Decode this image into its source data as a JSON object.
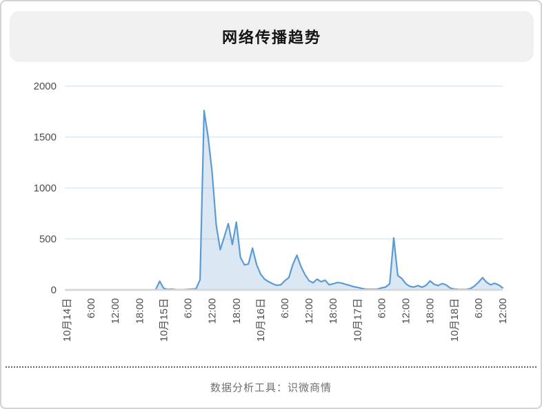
{
  "header": {
    "title": "网络传播趋势"
  },
  "footer": {
    "text": "数据分析工具：识微商情"
  },
  "chart_data": {
    "type": "area",
    "title": "网络传播趋势",
    "x_unit": "hour",
    "tick_every": 6,
    "tick_labels": [
      "10月14日",
      "6:00",
      "12:00",
      "18:00",
      "10月15日",
      "6:00",
      "12:00",
      "18:00",
      "10月16日",
      "6:00",
      "12:00",
      "18:00",
      "10月17日",
      "6:00",
      "12:00",
      "18:00",
      "10月18日",
      "6:00",
      "12:00"
    ],
    "values": [
      0,
      0,
      0,
      0,
      0,
      0,
      0,
      0,
      0,
      0,
      0,
      0,
      0,
      0,
      0,
      0,
      0,
      0,
      0,
      0,
      0,
      0,
      3,
      85,
      15,
      5,
      8,
      3,
      2,
      3,
      5,
      8,
      10,
      100,
      1760,
      1500,
      1150,
      640,
      395,
      520,
      650,
      445,
      665,
      320,
      245,
      255,
      410,
      250,
      155,
      105,
      80,
      60,
      45,
      50,
      90,
      120,
      250,
      340,
      230,
      150,
      90,
      70,
      105,
      80,
      95,
      50,
      60,
      72,
      68,
      55,
      45,
      32,
      25,
      15,
      8,
      6,
      6,
      8,
      20,
      28,
      60,
      510,
      140,
      112,
      60,
      34,
      28,
      42,
      26,
      45,
      88,
      55,
      42,
      62,
      48,
      18,
      8,
      5,
      4,
      5,
      12,
      38,
      75,
      120,
      75,
      50,
      65,
      48,
      20
    ],
    "ylim": [
      0,
      2000
    ],
    "y_ticks": [
      0,
      500,
      1000,
      1500,
      2000
    ],
    "grid": true,
    "legend": "none",
    "colors": {
      "line": "#5b9ad2",
      "fill": "rgba(127,171,217,0.28)",
      "gridline": "#dce9f4",
      "axis_line": "#d3d6d9",
      "tick_text": "#4c4c4c"
    }
  }
}
